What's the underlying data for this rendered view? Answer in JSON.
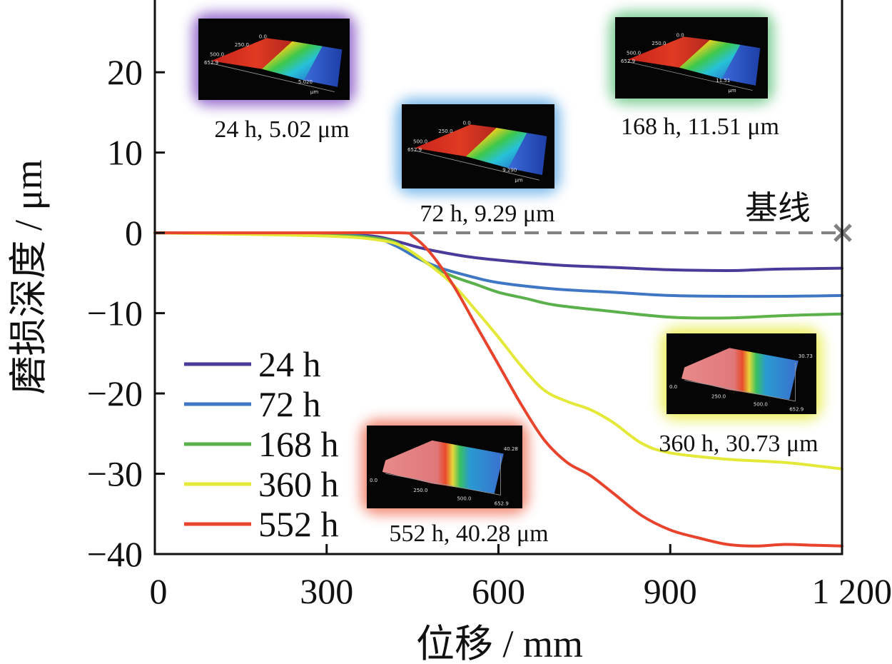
{
  "chart_data": {
    "type": "line",
    "xlabel": "位移 / mm",
    "ylabel": "磨损深度 / μm",
    "xlim": [
      0,
      1200
    ],
    "ylim": [
      -40,
      29
    ],
    "xticks": [
      0,
      300,
      600,
      900,
      1200
    ],
    "xtick_labels": [
      "0",
      "300",
      "600",
      "900",
      "1 200"
    ],
    "yticks": [
      20,
      10,
      0,
      -10,
      -20,
      -30,
      -40
    ],
    "ytick_labels": [
      "20",
      "10",
      "0",
      "−10",
      "−20",
      "−30",
      "−40"
    ],
    "grid": false,
    "legend_position": "lower-left",
    "baseline": {
      "label": "基线",
      "y": 0,
      "marker": "×",
      "color": "#7f7f7f"
    },
    "series": [
      {
        "name": "24 h",
        "color": "#4b3a99",
        "x": [
          0,
          300,
          380,
          420,
          460,
          500,
          550,
          600,
          700,
          800,
          900,
          1000,
          1050,
          1100,
          1200
        ],
        "y": [
          0,
          -0.2,
          -0.4,
          -1.0,
          -1.8,
          -2.4,
          -3.0,
          -3.4,
          -4.0,
          -4.3,
          -4.6,
          -4.7,
          -4.6,
          -4.5,
          -4.4
        ]
      },
      {
        "name": "72 h",
        "color": "#3f77c4",
        "x": [
          0,
          300,
          380,
          420,
          460,
          500,
          550,
          600,
          700,
          800,
          900,
          1000,
          1100,
          1200
        ],
        "y": [
          0,
          -0.2,
          -0.6,
          -1.6,
          -3.2,
          -4.4,
          -5.4,
          -6.2,
          -7.0,
          -7.4,
          -7.8,
          -7.9,
          -7.9,
          -7.8
        ]
      },
      {
        "name": "168 h",
        "color": "#5ab04a",
        "x": [
          0,
          300,
          400,
          440,
          480,
          520,
          560,
          600,
          650,
          700,
          800,
          900,
          1000,
          1100,
          1200
        ],
        "y": [
          0,
          -0.3,
          -0.8,
          -2.0,
          -4.0,
          -5.4,
          -6.4,
          -7.4,
          -8.2,
          -9.0,
          -9.8,
          -10.5,
          -10.6,
          -10.3,
          -10.1
        ]
      },
      {
        "name": "360 h",
        "color": "#e4e838",
        "x": [
          0,
          300,
          400,
          440,
          480,
          520,
          560,
          600,
          640,
          680,
          720,
          760,
          800,
          850,
          900,
          1000,
          1100,
          1200
        ],
        "y": [
          0,
          -0.4,
          -1.0,
          -2.0,
          -4.0,
          -6.4,
          -9.6,
          -13.0,
          -16.6,
          -19.6,
          -21.0,
          -22.0,
          -23.6,
          -26.2,
          -27.4,
          -28.2,
          -28.6,
          -29.4
        ]
      },
      {
        "name": "552 h",
        "color": "#e8432c",
        "x": [
          0,
          300,
          430,
          450,
          480,
          520,
          560,
          600,
          640,
          680,
          720,
          760,
          800,
          850,
          900,
          950,
          1000,
          1050,
          1100,
          1150,
          1200
        ],
        "y": [
          0,
          0,
          0,
          -0.4,
          -2.4,
          -6.4,
          -11.4,
          -16.4,
          -21.4,
          -25.8,
          -28.6,
          -30.2,
          -32.4,
          -35.2,
          -37.0,
          -38.0,
          -38.8,
          -39.0,
          -38.8,
          -38.9,
          -39.0
        ]
      }
    ],
    "insets": [
      {
        "caption": "24 h, 5.02 μm",
        "glow": "#8a5cc8",
        "style": "stepped",
        "labels": [
          "5.020",
          "μm",
          "652.9",
          "500.0",
          "250.0",
          "0.0"
        ]
      },
      {
        "caption": "72 h, 9.29 μm",
        "glow": "#6ab0e8",
        "style": "stepped",
        "labels": [
          "9.290",
          "μm",
          "652.9",
          "500.0",
          "250.0",
          "0.0"
        ]
      },
      {
        "caption": "168 h, 11.51 μm",
        "glow": "#70c88a",
        "style": "stepped",
        "labels": [
          "11.51",
          "μm",
          "652.9",
          "500.0",
          "250.0",
          "0.0"
        ]
      },
      {
        "caption": "360 h, 30.73 μm",
        "glow": "#e8ec4a",
        "style": "groove",
        "labels": [
          "30.73",
          "0.0",
          "250.0",
          "500.0",
          "652.9"
        ]
      },
      {
        "caption": "552 h, 40.28 μm",
        "glow": "#f07860",
        "style": "groove",
        "labels": [
          "40.28",
          "0.0",
          "250.0",
          "500.0",
          "652.9"
        ]
      }
    ]
  }
}
